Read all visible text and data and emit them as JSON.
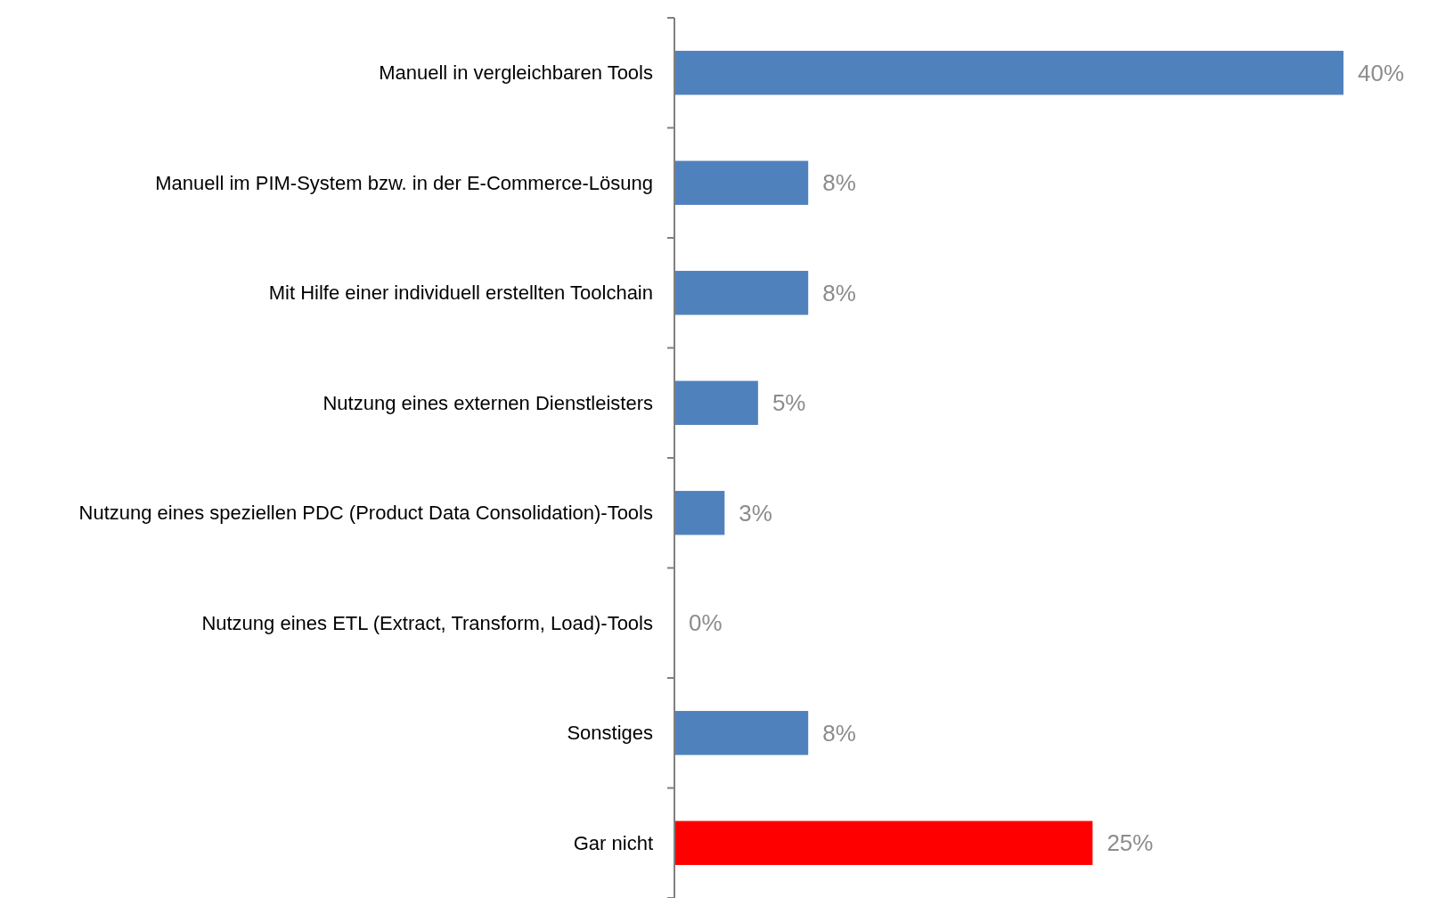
{
  "chart_data": {
    "type": "bar",
    "orientation": "horizontal",
    "value_labels": [
      "40%",
      "8%",
      "8%",
      "5%",
      "3%",
      "0%",
      "8%",
      "25%"
    ],
    "categories": [
      "Manuell in vergleichbaren Tools",
      "Manuell im PIM-System bzw. in der E-Commerce-Lösung",
      "Mit Hilfe einer individuell erstellten Toolchain",
      "Nutzung eines externen Dienstleisters",
      "Nutzung eines speziellen PDC (Product Data Consolidation)-Tools",
      "Nutzung eines ETL (Extract, Transform, Load)-Tools",
      "Sonstiges",
      "Gar nicht"
    ],
    "values": [
      40,
      8,
      8,
      5,
      3,
      0,
      8,
      25
    ],
    "colors": [
      "#4f81bd",
      "#4f81bd",
      "#4f81bd",
      "#4f81bd",
      "#4f81bd",
      "#4f81bd",
      "#4f81bd",
      "#ff0000"
    ]
  }
}
